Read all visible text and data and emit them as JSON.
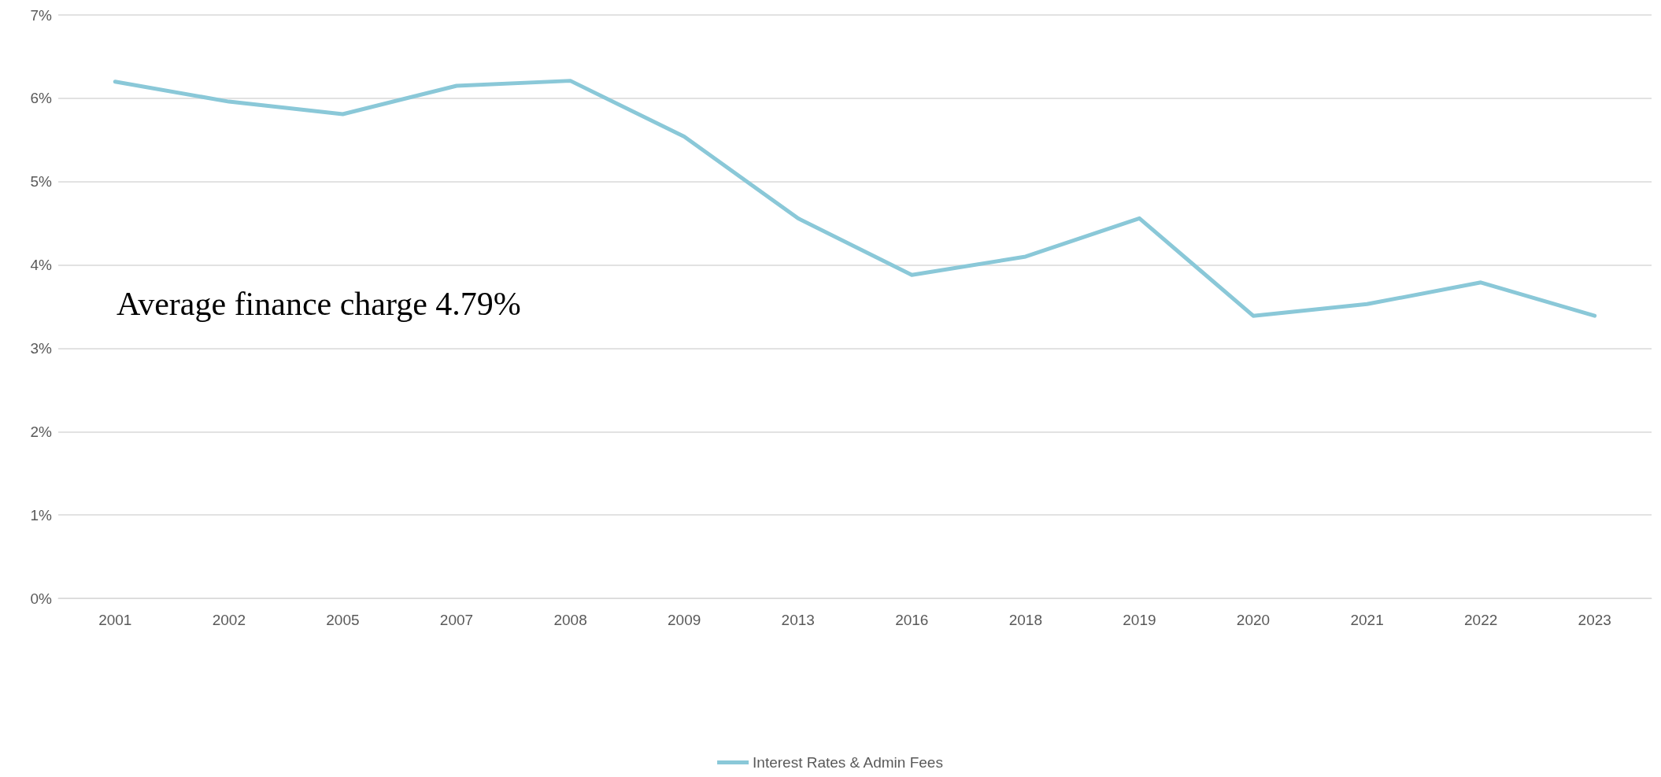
{
  "chart_data": {
    "type": "line",
    "categories": [
      "2001",
      "2002",
      "2005",
      "2007",
      "2008",
      "2009",
      "2013",
      "2016",
      "2018",
      "2019",
      "2020",
      "2021",
      "2022",
      "2023"
    ],
    "series": [
      {
        "name": "Interest Rates & Admin Fees",
        "color": "#8ac8d8",
        "values": [
          6.2,
          5.96,
          5.81,
          6.15,
          6.21,
          5.54,
          4.56,
          3.88,
          4.1,
          4.56,
          3.39,
          3.53,
          3.79,
          3.39
        ]
      }
    ],
    "ylim": [
      0,
      7
    ],
    "yticks": [
      {
        "value": 0,
        "label": "0%"
      },
      {
        "value": 1,
        "label": "1%"
      },
      {
        "value": 2,
        "label": "2%"
      },
      {
        "value": 3,
        "label": "3%"
      },
      {
        "value": 4,
        "label": "4%"
      },
      {
        "value": 5,
        "label": "5%"
      },
      {
        "value": 6,
        "label": "6%"
      },
      {
        "value": 7,
        "label": "7%"
      }
    ],
    "grid": "y",
    "legend": "bottom",
    "marker": "none",
    "line_style": "solid",
    "annotations": [
      "Average finance charge 4.79%"
    ]
  }
}
